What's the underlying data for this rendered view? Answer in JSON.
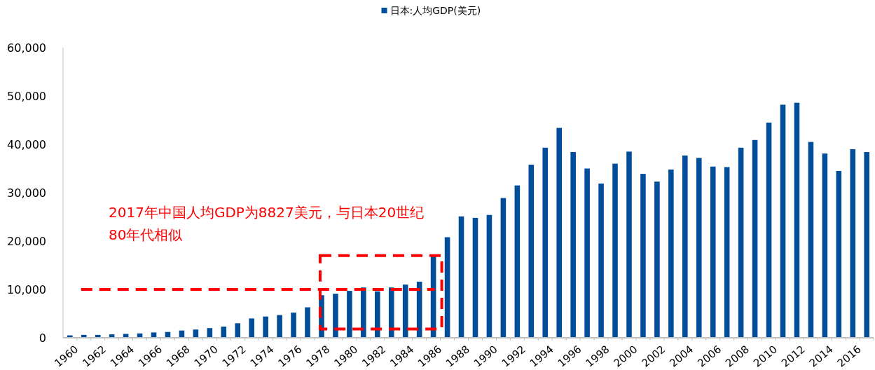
{
  "chart_data": {
    "type": "bar",
    "categories": [
      "1960",
      null,
      "1962",
      null,
      "1964",
      null,
      "1966",
      null,
      "1968",
      null,
      "1970",
      null,
      "1972",
      null,
      "1974",
      null,
      "1976",
      null,
      "1978",
      null,
      "1980",
      null,
      "1982",
      null,
      "1984",
      null,
      "1986",
      null,
      "1988",
      null,
      "1990",
      null,
      "1992",
      null,
      "1994",
      null,
      "1996",
      null,
      "1998",
      null,
      "2000",
      null,
      "2002",
      null,
      "2004",
      null,
      "2006",
      null,
      "2008",
      null,
      "2010",
      null,
      "2012",
      null,
      "2014",
      null,
      "2016",
      null
    ],
    "series": [
      {
        "name": "日本:人均GDP(美元)",
        "color": "#004e9a",
        "values": [
          500,
          600,
          600,
          700,
          800,
          900,
          1100,
          1200,
          1500,
          1700,
          2000,
          2300,
          3000,
          4000,
          4400,
          4700,
          5200,
          6300,
          8800,
          9100,
          9700,
          10400,
          9600,
          10400,
          11000,
          11600,
          17100,
          20800,
          25100,
          24800,
          25400,
          28900,
          31500,
          35800,
          39300,
          43400,
          38400,
          35000,
          31900,
          36000,
          38500,
          33900,
          32300,
          34800,
          37700,
          37200,
          35400,
          35300,
          39300,
          40900,
          44500,
          48200,
          48600,
          40500,
          38100,
          34500,
          39000,
          38400
        ]
      }
    ],
    "ylim": [
      0,
      60000
    ],
    "yticks": [
      0,
      {
        "value": 10000,
        "label": "10,000"
      },
      {
        "value": 20000,
        "label": "20,000"
      },
      {
        "value": 30000,
        "label": "30,000"
      },
      {
        "value": 40000,
        "label": "40,000"
      },
      {
        "value": 50000,
        "label": "50,000"
      },
      {
        "value": 60000,
        "label": "60,000"
      }
    ],
    "grid": false,
    "legend": "top",
    "ref_lines": [
      {
        "axis": "y",
        "value": 10000,
        "color": "#ff0000",
        "line_style": "dashed"
      }
    ],
    "annotations": [
      "2017年中国人均GDP为8827美元，与日本20世纪80年代相似"
    ]
  }
}
